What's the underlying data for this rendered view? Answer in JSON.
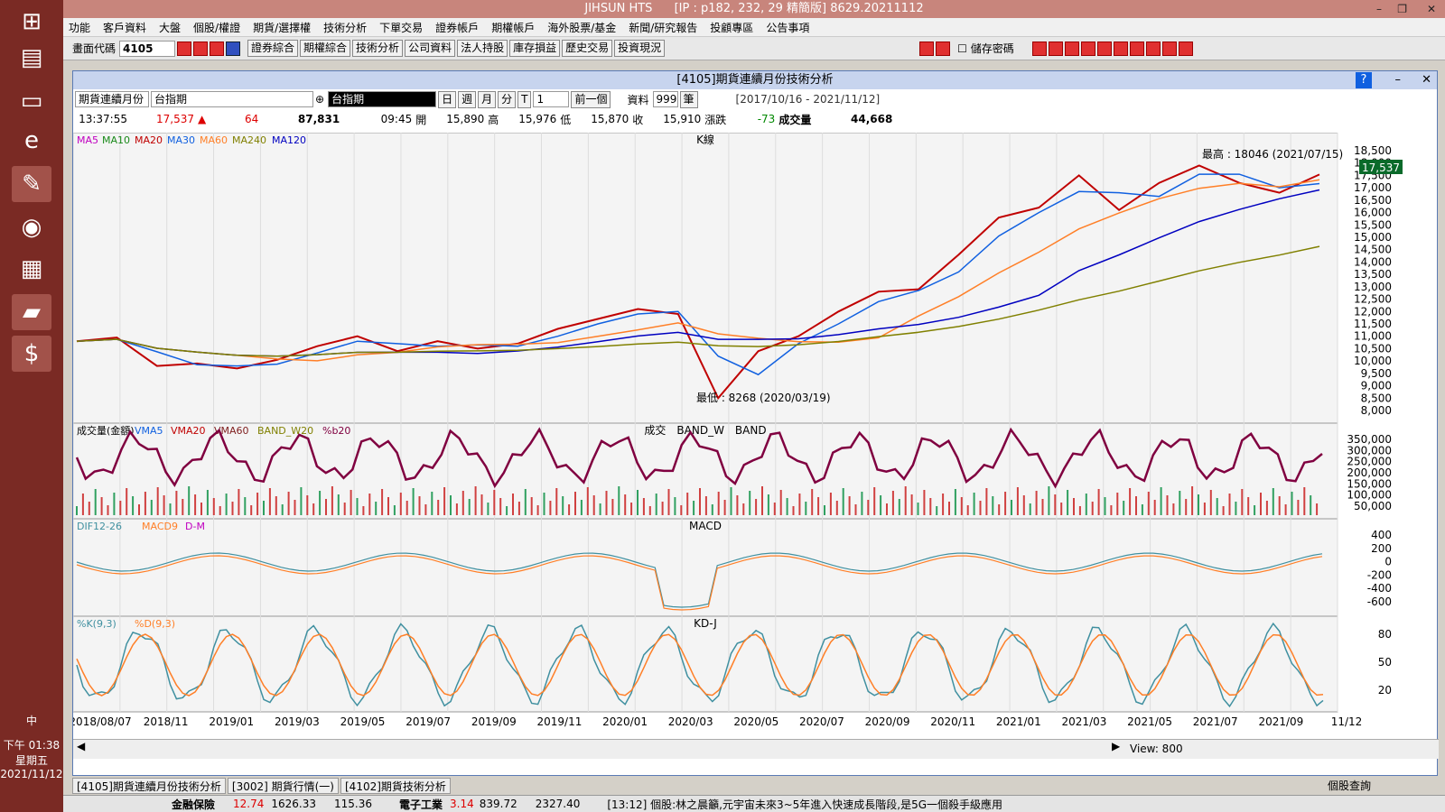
{
  "window": {
    "title": "JIHSUN HTS",
    "server": "[IP : p182, 232, 29 精簡版] 8629.20211112"
  },
  "menu": [
    "功能",
    "客戶資料",
    "大盤",
    "個股/權證",
    "期貨/選擇權",
    "技術分析",
    "下單交易",
    "證券帳戶",
    "期權帳戶",
    "海外股票/基金",
    "新聞/研究報告",
    "投顧專區",
    "公告事項"
  ],
  "toolbar": {
    "code_label": "畫面代碼",
    "code_value": "4105",
    "buttons": [
      "證券綜合",
      "期權綜合",
      "技術分析",
      "公司資料",
      "法人持股",
      "庫存損益",
      "歷史交易",
      "投資現況"
    ],
    "save_pwd": "儲存密碼"
  },
  "child": {
    "title": "[4105]期貨連續月份技術分析",
    "row1": {
      "product": "期貨連續月份",
      "symbol": "台指期",
      "name": "台指期",
      "periods": [
        "日",
        "週",
        "月",
        "分",
        "T"
      ],
      "num": "1",
      "prev": "前一個",
      "data_label": "資料",
      "data_count": "999",
      "unit": "筆",
      "range": "[2017/10/16 - 2021/11/12]"
    },
    "row2": {
      "time": "13:37:55",
      "price": "17,537",
      "change": "64",
      "total": "87,831",
      "t2": "09:45",
      "open_l": "開",
      "open": "15,890",
      "high_l": "高",
      "high": "15,976",
      "low_l": "低",
      "low": "15,870",
      "close_l": "收",
      "close": "15,910",
      "chg_l": "漲跌",
      "chg": "-73",
      "vol_l": "成交量",
      "vol": "44,668"
    }
  },
  "chart_data": {
    "type": "line",
    "panel_titles": [
      "K線",
      "成交　BAND_W　BAND",
      "MACD",
      "KD-J"
    ],
    "ma_legend": [
      "MA5",
      "MA10",
      "MA20",
      "MA30",
      "MA60",
      "MA240",
      "MA120"
    ],
    "ma_colors": [
      "#c000c0",
      "#1a8a1a",
      "#c00000",
      "#1060e0",
      "#ff7f27",
      "#808000",
      "#0000c0"
    ],
    "vol_legend": [
      "成交量(金額)",
      "VMA5",
      "VMA20",
      "VMA60",
      "BAND_W20",
      "%b20"
    ],
    "macd_legend": [
      "DIF12-26",
      "MACD9",
      "D-M"
    ],
    "kd_legend": [
      "%K(9,3)",
      "%D(9,3)"
    ],
    "price_axis": [
      "18,500",
      "18,000",
      "17,500",
      "17,000",
      "16,500",
      "16,000",
      "15,500",
      "15,000",
      "14,500",
      "14,000",
      "13,500",
      "13,000",
      "12,500",
      "12,000",
      "11,500",
      "11,000",
      "10,500",
      "10,000",
      "9,500",
      "9,000",
      "8,500",
      "8,000"
    ],
    "vol_axis": [
      "350,000",
      "300,000",
      "250,000",
      "200,000",
      "150,000",
      "100,000",
      "50,000"
    ],
    "macd_axis": [
      "400",
      "200",
      "0",
      "-200",
      "-400",
      "-600"
    ],
    "kd_axis": [
      "80",
      "50",
      "20"
    ],
    "x_labels": [
      "2018/08/07",
      "2018/11",
      "2019/01",
      "2019/03",
      "2019/05",
      "2019/07",
      "2019/09",
      "2019/11",
      "2020/01",
      "2020/03",
      "2020/05",
      "2020/07",
      "2020/09",
      "2020/11",
      "2021/01",
      "2021/03",
      "2021/05",
      "2021/07",
      "2021/09",
      "11/12"
    ],
    "close_series": [
      10800,
      10950,
      9800,
      9900,
      9700,
      10050,
      10600,
      11000,
      10400,
      10800,
      10500,
      10700,
      11300,
      11700,
      12100,
      11900,
      8500,
      10400,
      11000,
      12000,
      12800,
      12900,
      14300,
      15800,
      16200,
      17500,
      16100,
      17200,
      17900,
      17200,
      16800,
      17537
    ],
    "last_price": "17,537",
    "max_label": "最高 : 18046 (2021/07/15)",
    "min_label": "最低 : 8268 (2020/03/19)",
    "view_label": "View: 800"
  },
  "tabs": [
    "[4105]期貨連續月份技術分析",
    "[3002] 期貨行情(一)",
    "[4102]期貨技術分析"
  ],
  "ticker": {
    "a": "金融保險",
    "a_v1": "12.74",
    "a_v2": "1626.33",
    "a_v3": "115.36",
    "b": "電子工業",
    "b_v1": "3.14",
    "b_v2": "839.72",
    "c": "2327.40",
    "news": "[13:12] 個股:林之晨籲,元宇宙未來3~5年進入快速成長階段,是5G一個殺手級應用",
    "right": "個股查詢"
  },
  "tray": {
    "time": "下午 01:38",
    "day": "星期五",
    "date": "2021/11/12",
    "ime": "中"
  }
}
